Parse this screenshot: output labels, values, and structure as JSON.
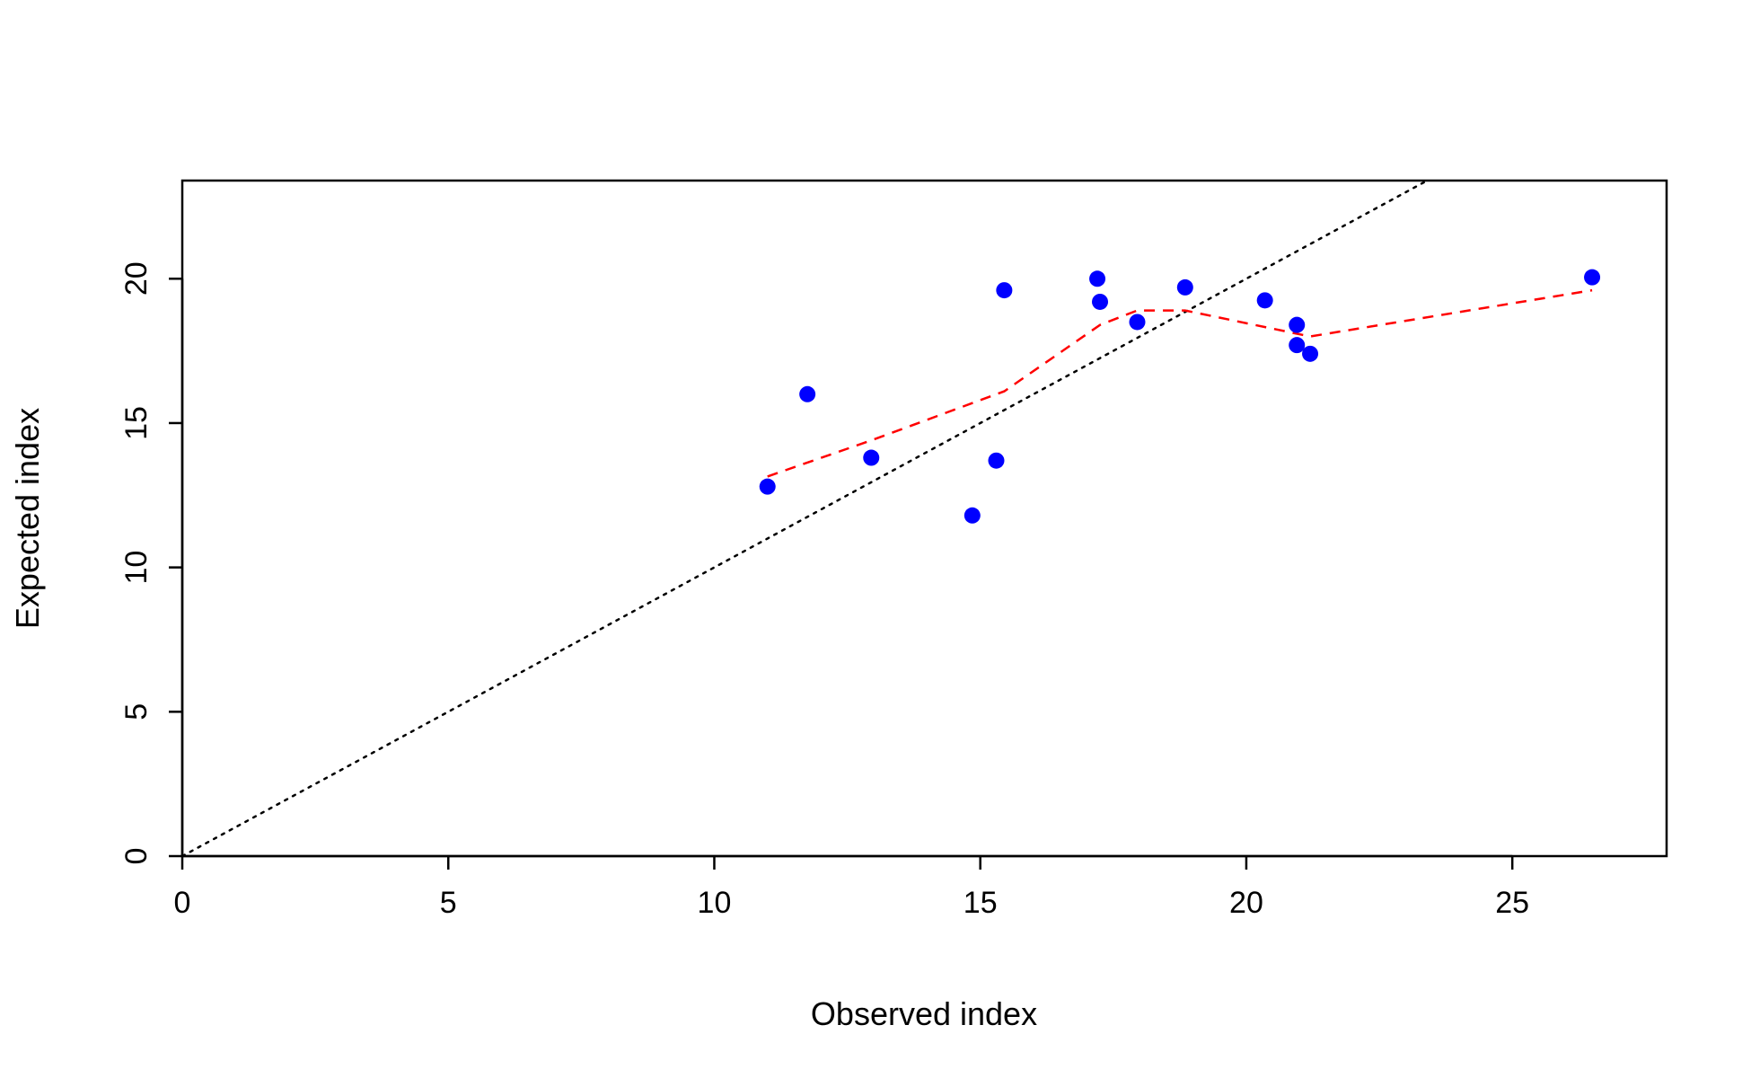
{
  "chart_data": {
    "type": "scatter",
    "title": "",
    "xlabel": "Observed index",
    "ylabel": "Expected index",
    "xlim": [
      0,
      27.9
    ],
    "ylim": [
      0,
      23.4
    ],
    "x_ticks": [
      0,
      5,
      10,
      15,
      20,
      25
    ],
    "y_ticks": [
      0,
      5,
      10,
      15,
      20
    ],
    "grid": false,
    "legend": "none",
    "colors": {
      "points": "#0000ff",
      "smooth_line": "#ff0000",
      "reference_line": "#000000",
      "axes": "#000000"
    },
    "points": [
      {
        "x": 11.0,
        "y": 12.8
      },
      {
        "x": 11.75,
        "y": 16.0
      },
      {
        "x": 12.95,
        "y": 13.8
      },
      {
        "x": 14.85,
        "y": 11.8
      },
      {
        "x": 15.3,
        "y": 13.7
      },
      {
        "x": 15.45,
        "y": 19.6
      },
      {
        "x": 17.2,
        "y": 20.0
      },
      {
        "x": 17.25,
        "y": 19.2
      },
      {
        "x": 17.95,
        "y": 18.5
      },
      {
        "x": 18.85,
        "y": 19.7
      },
      {
        "x": 20.35,
        "y": 19.25
      },
      {
        "x": 20.95,
        "y": 18.4
      },
      {
        "x": 20.95,
        "y": 17.7
      },
      {
        "x": 21.2,
        "y": 17.4
      },
      {
        "x": 26.5,
        "y": 20.05
      }
    ],
    "smooth_line": [
      {
        "x": 11.0,
        "y": 13.15
      },
      {
        "x": 12.95,
        "y": 14.4
      },
      {
        "x": 15.45,
        "y": 16.1
      },
      {
        "x": 17.25,
        "y": 18.4
      },
      {
        "x": 17.95,
        "y": 18.9
      },
      {
        "x": 18.85,
        "y": 18.9
      },
      {
        "x": 21.2,
        "y": 18.0
      },
      {
        "x": 26.5,
        "y": 19.6
      }
    ],
    "reference_line": {
      "type": "identity",
      "slope": 1,
      "intercept": 0
    }
  }
}
